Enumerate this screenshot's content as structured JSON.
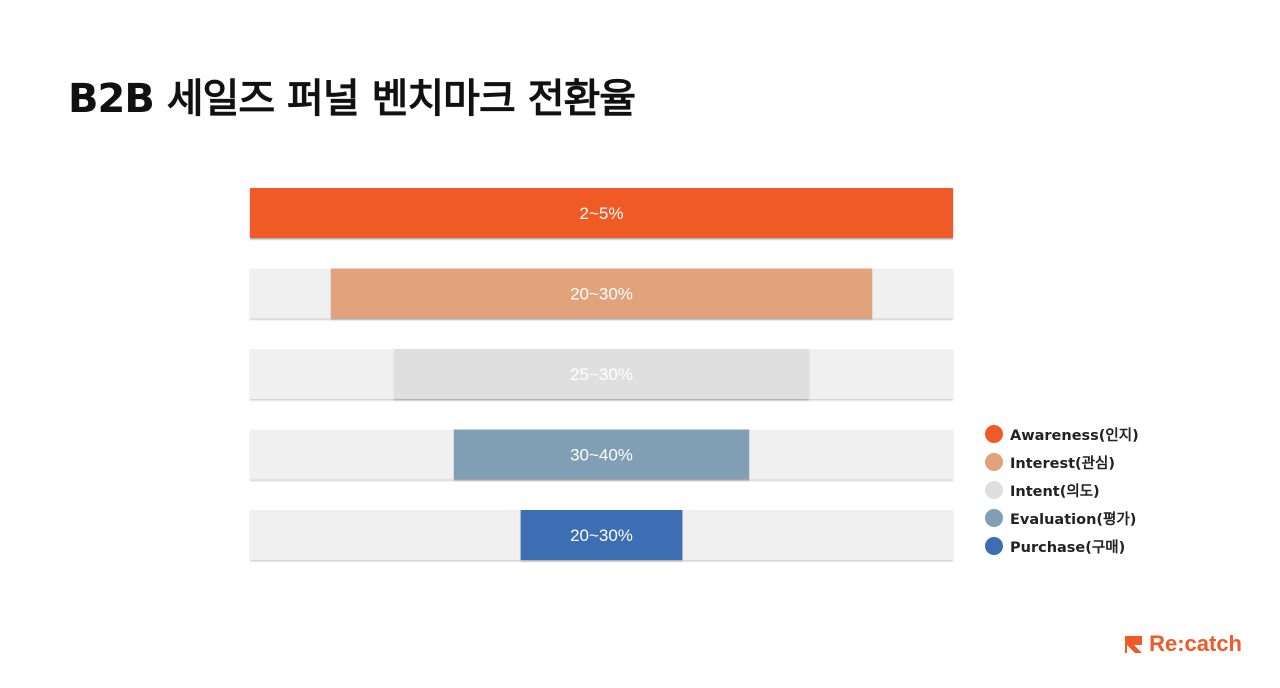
{
  "title": "B2B 세일즈 퍼널 벤치마크 전환율",
  "brand": {
    "name": "Re:catch",
    "color": "#f05a28"
  },
  "chart_data": {
    "type": "funnel",
    "track_color": "#f0f0f0",
    "stages": [
      {
        "name": "Awareness(인지)",
        "label": "2~5%",
        "width_fraction": 1.0,
        "color": "#f05a28",
        "label_color": "#ffffff"
      },
      {
        "name": "Interest(관심)",
        "label": "20~30%",
        "width_fraction": 0.77,
        "color": "#e1a27b",
        "label_color": "#ffffff"
      },
      {
        "name": "Intent(의도)",
        "label": "25~30%",
        "width_fraction": 0.59,
        "color": "#dfdfdf",
        "label_color": "#ffffff"
      },
      {
        "name": "Evaluation(평가)",
        "label": "30~40%",
        "width_fraction": 0.42,
        "color": "#809eb4",
        "label_color": "#ffffff"
      },
      {
        "name": "Purchase(구매)",
        "label": "20~30%",
        "width_fraction": 0.23,
        "color": "#3e6db3",
        "label_color": "#ffffff"
      }
    ]
  }
}
